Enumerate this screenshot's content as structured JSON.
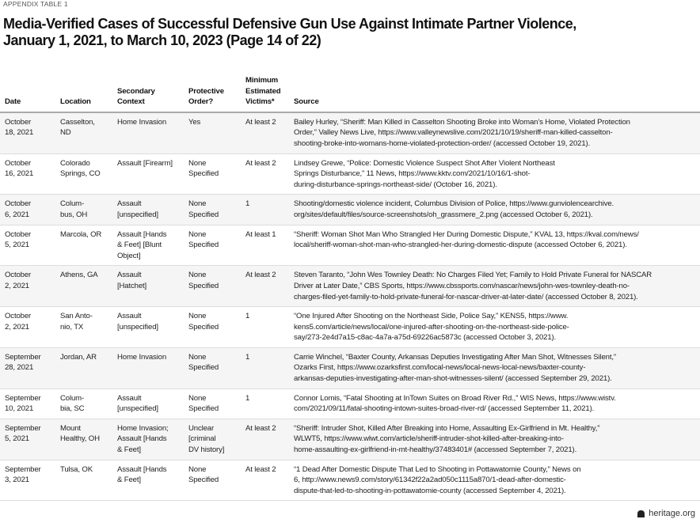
{
  "kicker": "APPENDIX TABLE 1",
  "title_lines": [
    "Media-Verified Cases of Successful Defensive Gun Use Against Intimate Partner Violence,",
    "January 1, 2021, to March 10, 2023 (Page 14 of 22)"
  ],
  "columns": [
    "Date",
    "Location",
    "Secondary\nContext",
    "Protective\nOrder?",
    "Minimum\nEstimated\nVictims*",
    "Source"
  ],
  "rows": [
    [
      "October\n18, 2021",
      "Casselton,\nND",
      "Home Invasion",
      "Yes",
      "At least 2",
      "Bailey Hurley, “Sheriff: Man Killed in Casselton Shooting Broke into Woman’s Home, Violated Protection\nOrder,” Valley News Live, https://www.valleynewslive.com/2021/10/19/sheriff-man-killed-casselton-\nshooting-broke-into-womans-home-violated-protection-order/ (accessed October 19, 2021)."
    ],
    [
      "October\n16, 2021",
      "Colorado\nSprings, CO",
      "Assault [Firearm]",
      "None\nSpecified",
      "At least 2",
      "Lindsey Grewe, “Police: Domestic Violence Suspect Shot After Violent Northeast\nSprings Disturbance,” 11 News, https://www.kktv.com/2021/10/16/1-shot-\nduring-disturbance-springs-northeast-side/ (October 16, 2021)."
    ],
    [
      "October\n6, 2021",
      "Colum-\nbus, OH",
      "Assault\n[unspecified]",
      "None\nSpecified",
      "1",
      "Shooting/domestic violence incident, Columbus Division of Police, https://www.gunviolencearchive.\norg/sites/default/files/source-screenshots/oh_grassmere_2.png (accessed October 6, 2021)."
    ],
    [
      "October\n5, 2021",
      "Marcola, OR",
      "Assault [Hands\n& Feet] [Blunt\nObject]",
      "None\nSpecified",
      "At least 1",
      "“Sheriff: Woman Shot Man Who Strangled Her During Domestic Dispute,” KVAL 13, https://kval.com/news/\nlocal/sheriff-woman-shot-man-who-strangled-her-during-domestic-dispute (accessed October 6, 2021)."
    ],
    [
      "October\n2, 2021",
      "Athens, GA",
      "Assault\n[Hatchet]",
      "None\nSpecified",
      "At least 2",
      "Steven Taranto, “John Wes Townley Death: No Charges Filed Yet; Family to Hold Private Funeral for NASCAR\nDriver at Later Date,” CBS Sports, https://www.cbssports.com/nascar/news/john-wes-townley-death-no-\ncharges-filed-yet-family-to-hold-private-funeral-for-nascar-driver-at-later-date/ (accessed October 8, 2021)."
    ],
    [
      "October\n2, 2021",
      "San Anto-\nnio, TX",
      "Assault\n[unspecified]",
      "None\nSpecified",
      "1",
      "“One Injured After Shooting on the Northeast Side, Police Say,” KENS5, https://www.\nkens5.com/article/news/local/one-injured-after-shooting-on-the-northeast-side-police-\nsay/273-2e4d7a15-c8ac-4a7a-a75d-69226ac5873c (accessed October 3, 2021)."
    ],
    [
      "September\n28, 2021",
      "Jordan, AR",
      "Home Invasion",
      "None\nSpecified",
      "1",
      "Carrie Winchel, “Baxter County, Arkansas Deputies Investigating After Man Shot, Witnesses Silent,”\nOzarks First, https://www.ozarksfirst.com/local-news/local-news-local-news/baxter-county-\narkansas-deputies-investigating-after-man-shot-witnesses-silent/ (accessed September 29, 2021)."
    ],
    [
      "September\n10, 2021",
      "Colum-\nbia, SC",
      "Assault\n[unspecified]",
      "None\nSpecified",
      "1",
      "Connor Lomis, “Fatal Shooting at InTown Suites on Broad River Rd.,” WIS News, https://www.wistv.\ncom/2021/09/11/fatal-shooting-intown-suites-broad-river-rd/ (accessed September 11, 2021)."
    ],
    [
      "September\n5, 2021",
      "Mount\nHealthy, OH",
      "Home Invasion;\nAssault [Hands\n& Feet]",
      "Unclear\n[criminal\nDV history]",
      "At least 2",
      "“Sheriff: Intruder Shot, Killed After Breaking into Home, Assaulting Ex-Girlfriend in Mt. Healthy,”\nWLWT5, https://www.wlwt.com/article/sheriff-intruder-shot-killed-after-breaking-into-\nhome-assaulting-ex-girlfriend-in-mt-healthy/37483401# (accessed September 7, 2021)."
    ],
    [
      "September\n3, 2021",
      "Tulsa, OK",
      "Assault [Hands\n& Feet]",
      "None\nSpecified",
      "At least 2",
      "“1 Dead After Domestic Dispute That Led to Shooting in Pottawatomie County,” News on\n6, http://www.news9.com/story/61342f22a2ad050c1115a870/1-dead-after-domestic-\ndispute-that-led-to-shooting-in-pottawatomie-county (accessed September 4, 2021)."
    ]
  ],
  "footer": {
    "logo_icon": "heritage-bell-icon",
    "text": "heritage.org"
  }
}
